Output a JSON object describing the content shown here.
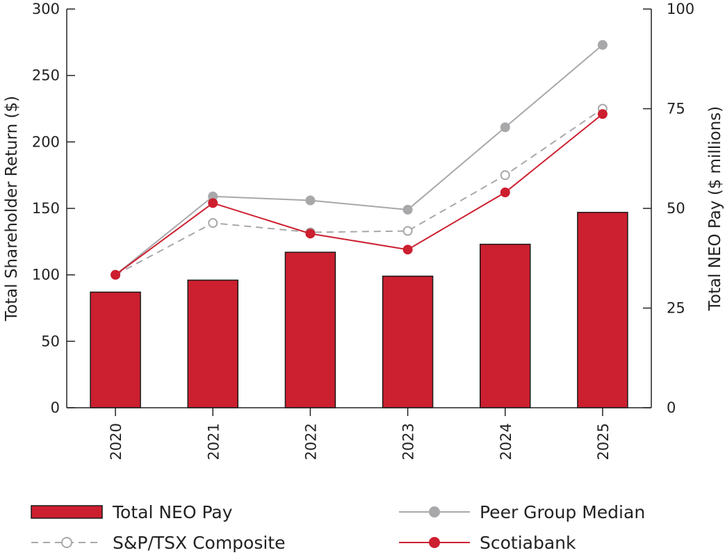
{
  "chart_data": {
    "type": "bar+line",
    "categories": [
      "2020",
      "2021",
      "2022",
      "2023",
      "2024",
      "2025"
    ],
    "bar_series": {
      "name": "Total NEO Pay",
      "axis": "right",
      "values": [
        29.0,
        32.0,
        39.0,
        33.0,
        41.0,
        49.0
      ],
      "color": "#cc1f2f"
    },
    "line_series": [
      {
        "name": "Peer Group Median",
        "axis": "left",
        "values": [
          100,
          159,
          156,
          149,
          211,
          273
        ],
        "color": "#a8a8ab",
        "dashed": false,
        "filled_marker": true
      },
      {
        "name": "S&P/TSX Composite",
        "axis": "left",
        "values": [
          100,
          139,
          132,
          133,
          175,
          225
        ],
        "color": "#a8a8ab",
        "dashed": true,
        "filled_marker": false
      },
      {
        "name": "Scotiabank",
        "axis": "left",
        "values": [
          100,
          154,
          131,
          119,
          162,
          221
        ],
        "color": "#cc1f2f",
        "dashed": false,
        "filled_marker": true
      }
    ],
    "y_left": {
      "label": "Total Shareholder Return ($)",
      "lim": [
        0,
        300
      ],
      "ticks": [
        "0",
        "50",
        "100",
        "150",
        "200",
        "250",
        "300"
      ]
    },
    "y_right": {
      "label": "Total NEO Pay ($ millions)",
      "lim": [
        0,
        100
      ],
      "ticks": [
        "0",
        "25",
        "50",
        "75",
        "100"
      ]
    },
    "legend": {
      "placement": "bottom",
      "items": [
        "Total NEO Pay",
        "Peer Group Median",
        "S&P/TSX Composite",
        "Scotiabank"
      ]
    }
  }
}
